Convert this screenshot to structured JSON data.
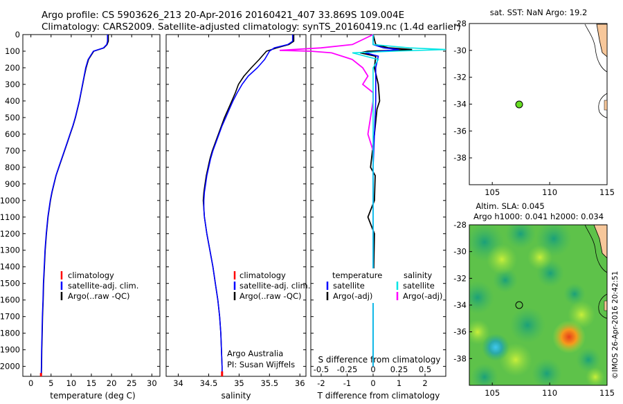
{
  "title": {
    "line1": "Argo profile: CS 5903626_213 20-Apr-2016 20160421_407 33.869S 109.004E",
    "line2": "Climatology: CARS2009. Satellite-adjusted climatology: synTS_20160419.nc (1.4d earlier)"
  },
  "depth_axis": {
    "ticks": [
      0,
      100,
      200,
      300,
      400,
      500,
      600,
      700,
      800,
      900,
      1000,
      1100,
      1200,
      1300,
      1400,
      1500,
      1600,
      1700,
      1800,
      1900,
      2000
    ],
    "range": [
      0,
      2060
    ]
  },
  "legend": {
    "climatology": "climatology",
    "satellite": "satellite-adj. clim.",
    "argo": "Argo(..raw -QC)"
  },
  "diff_legend": {
    "temperature": "temperature",
    "salinity": "salinity",
    "satellite": "satellite",
    "argo_adj": "Argo(-adj)"
  },
  "credits": {
    "line1": "Argo Australia",
    "line2": "PI: Susan Wijffels"
  },
  "map_top": {
    "title": "sat. SST: NaN Argo: 19.2",
    "lon_ticks": [
      "105",
      "110",
      "115"
    ],
    "lat_ticks": [
      "-28",
      "-30",
      "-32",
      "-34",
      "-36",
      "-38"
    ]
  },
  "map_bottom": {
    "title1": "Altim. SLA: 0.045",
    "title2": "Argo h1000: 0.041 h2000: 0.034",
    "lon_ticks": [
      "105",
      "110",
      "115"
    ],
    "lat_ticks": [
      "-28",
      "-30",
      "-32",
      "-34",
      "-36",
      "-38"
    ]
  },
  "watermark": "©IMOS 26-Apr-2016 20:42:51",
  "colors": {
    "climatology": "#ff0000",
    "satellite": "#0000ff",
    "argo": "#000000",
    "sal_satellite": "#00e5e5",
    "sal_argo": "#ff00ff",
    "float_marker": "#66dd22",
    "land": "#f7c79a"
  },
  "chart_data": [
    {
      "type": "line",
      "title": "",
      "xlabel": "temperature (deg C)",
      "ylabel": "",
      "xlim": [
        -2,
        32
      ],
      "ylim": [
        2060,
        0
      ],
      "xticks": [
        0,
        5,
        10,
        15,
        20,
        25,
        30
      ],
      "series": [
        {
          "name": "climatology",
          "depth": [
            2040,
            2060
          ],
          "values": [
            2.5,
            2.5
          ]
        },
        {
          "name": "satellite-adj. clim.",
          "depth": [
            0,
            40,
            60,
            80,
            100,
            150,
            200,
            250,
            300,
            350,
            400,
            450,
            500,
            550,
            600,
            650,
            700,
            750,
            800,
            850,
            900,
            950,
            1000,
            1100,
            1200,
            1300,
            1400,
            1500,
            1600,
            1700,
            1800,
            1900,
            2000,
            2050
          ],
          "values": [
            19.0,
            19.0,
            18.8,
            18.0,
            15.5,
            14.2,
            13.6,
            13.2,
            12.8,
            12.4,
            12.0,
            11.5,
            11.0,
            10.4,
            9.7,
            9.0,
            8.3,
            7.6,
            6.9,
            6.2,
            5.7,
            5.2,
            4.8,
            4.2,
            3.8,
            3.5,
            3.3,
            3.1,
            3.0,
            2.85,
            2.75,
            2.65,
            2.6,
            2.55
          ]
        },
        {
          "name": "Argo(..raw -QC)",
          "depth": [
            0,
            40,
            60,
            80,
            100,
            150,
            200,
            250,
            300,
            350,
            400,
            450,
            500,
            550,
            600,
            650,
            700,
            750,
            800,
            850,
            900,
            950,
            1000,
            1100,
            1200,
            1300,
            1400,
            1500,
            1600,
            1700,
            1800,
            1900,
            2000,
            2050
          ],
          "values": [
            19.2,
            19.2,
            18.9,
            18.1,
            15.6,
            14.3,
            13.7,
            13.25,
            12.85,
            12.45,
            12.05,
            11.55,
            11.05,
            10.45,
            9.75,
            9.05,
            8.35,
            7.65,
            6.95,
            6.25,
            5.75,
            5.25,
            4.85,
            4.25,
            3.85,
            3.55,
            3.35,
            3.15,
            3.05,
            2.9,
            2.8,
            2.7,
            2.65,
            2.6
          ]
        }
      ]
    },
    {
      "type": "line",
      "title": "",
      "xlabel": "salinity",
      "ylabel": "",
      "xlim": [
        33.8,
        36.1
      ],
      "ylim": [
        2060,
        0
      ],
      "xticks": [
        34,
        34.5,
        35,
        35.5,
        36
      ],
      "series": [
        {
          "name": "climatology",
          "depth": [
            2030,
            2060
          ],
          "values": [
            34.72,
            34.72
          ]
        },
        {
          "name": "satellite-adj. clim.",
          "depth": [
            0,
            40,
            60,
            80,
            100,
            150,
            200,
            250,
            300,
            350,
            400,
            450,
            500,
            550,
            600,
            650,
            700,
            750,
            800,
            850,
            900,
            950,
            1000,
            1050,
            1100,
            1200,
            1300,
            1400,
            1500,
            1600,
            1700,
            1800,
            1900,
            2000,
            2050
          ],
          "values": [
            35.88,
            35.88,
            35.8,
            35.58,
            35.5,
            35.42,
            35.3,
            35.15,
            35.05,
            34.97,
            34.9,
            34.84,
            34.78,
            34.72,
            34.67,
            34.62,
            34.57,
            34.53,
            34.5,
            34.47,
            34.45,
            34.43,
            34.42,
            34.42,
            34.43,
            34.47,
            34.52,
            34.57,
            34.61,
            34.65,
            34.68,
            34.7,
            34.71,
            34.72,
            34.72
          ]
        },
        {
          "name": "Argo(..raw -QC)",
          "depth": [
            0,
            40,
            60,
            80,
            100,
            150,
            200,
            250,
            300,
            350,
            400,
            450,
            500,
            550,
            600,
            650,
            700,
            750,
            800,
            850,
            900,
            950,
            1000,
            1050,
            1100,
            1200,
            1300,
            1400,
            1500,
            1600,
            1700,
            1800,
            1900,
            2000,
            2050
          ],
          "values": [
            35.9,
            35.9,
            35.82,
            35.62,
            35.45,
            35.33,
            35.2,
            35.08,
            34.99,
            34.94,
            34.88,
            34.82,
            34.76,
            34.71,
            34.66,
            34.61,
            34.56,
            34.52,
            34.49,
            34.46,
            34.44,
            34.42,
            34.41,
            34.42,
            34.43,
            34.47,
            34.52,
            34.57,
            34.61,
            34.65,
            34.68,
            34.7,
            34.71,
            34.72,
            34.72
          ]
        }
      ]
    },
    {
      "type": "line",
      "title": "S difference from climatology",
      "xlabel": "T difference from climatology",
      "ylabel": "",
      "xlim": [
        -2.4,
        2.8
      ],
      "ylim": [
        2060,
        0
      ],
      "xticks_T": [
        -2,
        -1,
        0,
        1,
        2
      ],
      "xticks_S": [
        "-0.5",
        "-0.25",
        "0",
        "0.25",
        "0.5"
      ],
      "series": [
        {
          "name": "temperature satellite",
          "depth": [
            0,
            60,
            80,
            90,
            100,
            110,
            130,
            200,
            400,
            800,
            1200,
            1600,
            2000
          ],
          "values": [
            0,
            0,
            0.4,
            1.0,
            0.3,
            -0.3,
            0.2,
            0.1,
            0.1,
            0,
            0,
            0,
            0
          ]
        },
        {
          "name": "temperature Argo(-adj)",
          "depth": [
            0,
            60,
            80,
            90,
            95,
            100,
            110,
            130,
            200,
            300,
            400,
            450,
            600,
            800,
            850,
            1000,
            1100,
            1200,
            1600,
            2000
          ],
          "values": [
            0,
            0.1,
            0.6,
            1.5,
            0.8,
            -0.2,
            -0.5,
            0.1,
            0.05,
            0.2,
            0.25,
            0.15,
            0.05,
            -0.1,
            0.08,
            0.05,
            -0.2,
            0.05,
            0,
            0
          ]
        },
        {
          "name": "salinity satellite",
          "depth": [
            0,
            60,
            80,
            90,
            100,
            110,
            150,
            200,
            300,
            400,
            600,
            800,
            1000,
            1200,
            1600,
            2000
          ],
          "values": [
            0,
            0,
            0.35,
            0.7,
            0.2,
            -0.2,
            0.05,
            0.0,
            0.0,
            0.0,
            0.0,
            0.0,
            0.0,
            0.0,
            0.0,
            0.0
          ]
        },
        {
          "name": "salinity Argo(-adj)",
          "depth": [
            0,
            60,
            80,
            95,
            100,
            110,
            150,
            200,
            250,
            300,
            350,
            400,
            600,
            700,
            800,
            1000,
            1200,
            1600,
            2000
          ],
          "values": [
            0,
            -0.2,
            -0.5,
            -0.9,
            -0.6,
            -0.4,
            -0.2,
            -0.1,
            -0.05,
            -0.1,
            0.0,
            0.0,
            -0.05,
            0.0,
            0.0,
            0.0,
            0.0,
            0.0,
            0.0
          ]
        }
      ]
    }
  ]
}
